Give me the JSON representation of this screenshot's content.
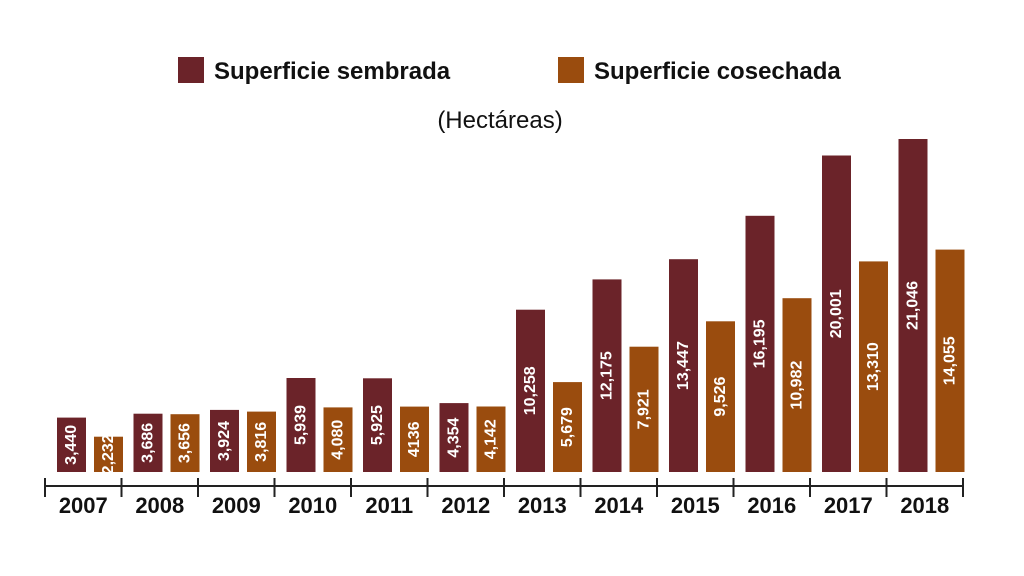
{
  "chart_data": {
    "type": "bar",
    "unit_label": "(Hectáreas)",
    "categories": [
      "2007",
      "2008",
      "2009",
      "2010",
      "2011",
      "2012",
      "2013",
      "2014",
      "2015",
      "2016",
      "2017",
      "2018"
    ],
    "series": [
      {
        "name": "Superficie sembrada",
        "color": "#6b2329",
        "values": [
          3440,
          3686,
          3924,
          5939,
          5925,
          4354,
          10258,
          12175,
          13447,
          16195,
          20001,
          21046
        ],
        "value_labels": [
          "3,440",
          "3,686",
          "3,924",
          "5,939",
          "5,925",
          "4,354",
          "10,258",
          "12,175",
          "13,447",
          "16,195",
          "20,001",
          "21,046"
        ]
      },
      {
        "name": "Superficie cosechada",
        "color": "#9a4c0e",
        "values": [
          2232,
          3656,
          3816,
          4080,
          4136,
          4142,
          5679,
          7921,
          9526,
          10982,
          13310,
          14055
        ],
        "value_labels": [
          "2,232",
          "3,656",
          "3,816",
          "4,080",
          "4136",
          "4,142",
          "5,679",
          "7,921",
          "9,526",
          "10,982",
          "13,310",
          "14,055"
        ]
      }
    ],
    "legend_position": "top-center",
    "grid": false,
    "value_label_orientation": "vertical"
  }
}
